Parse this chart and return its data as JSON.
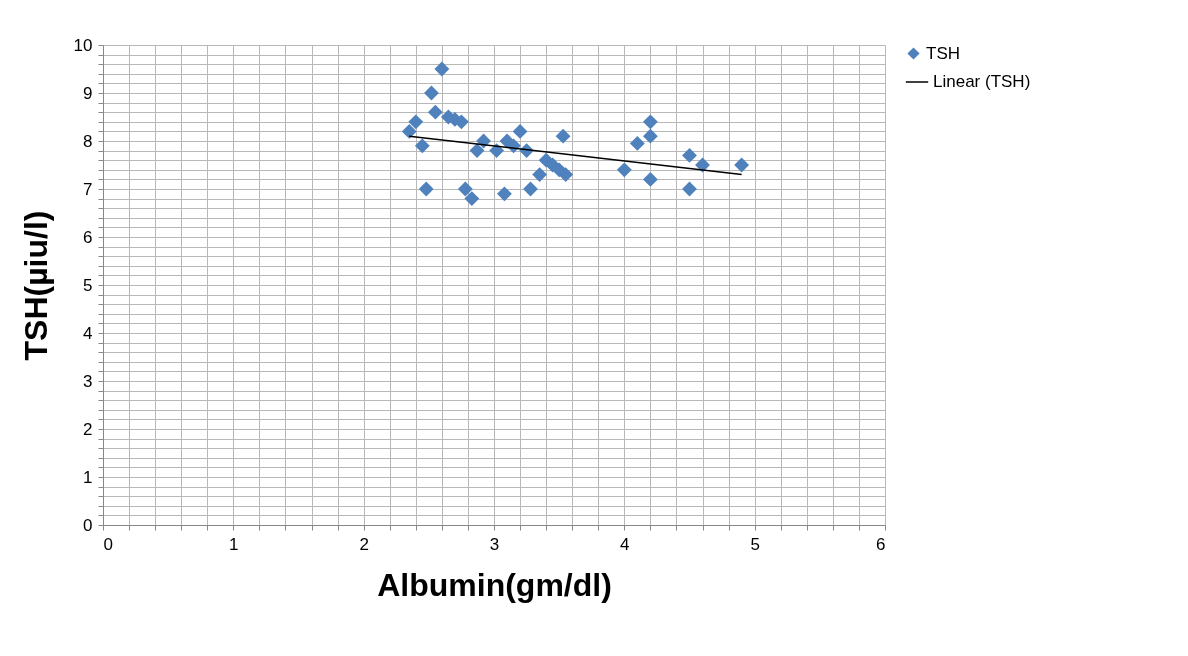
{
  "chart_data": {
    "type": "scatter",
    "xlabel": "Albumin(gm/dl)",
    "ylabel": "TSH(µiu/l)",
    "xlim": [
      0,
      6
    ],
    "ylim": [
      0,
      10
    ],
    "xticks": [
      0,
      {
        "value": 0.2,
        "label": null
      },
      {
        "value": 0.4,
        "label": null
      },
      {
        "value": 0.6,
        "label": null
      },
      {
        "value": 0.8,
        "label": null
      },
      1,
      {
        "value": 1.2,
        "label": null
      },
      {
        "value": 1.4,
        "label": null
      },
      {
        "value": 1.6,
        "label": null
      },
      {
        "value": 1.8,
        "label": null
      },
      2,
      {
        "value": 2.2,
        "label": null
      },
      {
        "value": 2.4,
        "label": null
      },
      {
        "value": 2.6,
        "label": null
      },
      {
        "value": 2.8,
        "label": null
      },
      3,
      {
        "value": 3.2,
        "label": null
      },
      {
        "value": 3.4,
        "label": null
      },
      {
        "value": 3.6,
        "label": null
      },
      {
        "value": 3.8,
        "label": null
      },
      4,
      {
        "value": 4.2,
        "label": null
      },
      {
        "value": 4.4,
        "label": null
      },
      {
        "value": 4.6,
        "label": null
      },
      {
        "value": 4.8,
        "label": null
      },
      5,
      {
        "value": 5.2,
        "label": null
      },
      {
        "value": 5.4,
        "label": null
      },
      {
        "value": 5.6,
        "label": null
      },
      {
        "value": 5.8,
        "label": null
      },
      6
    ],
    "yticks": [
      0,
      {
        "value": 0.2,
        "label": null
      },
      {
        "value": 0.4,
        "label": null
      },
      {
        "value": 0.6,
        "label": null
      },
      {
        "value": 0.8,
        "label": null
      },
      1,
      {
        "value": 1.2,
        "label": null
      },
      {
        "value": 1.4,
        "label": null
      },
      {
        "value": 1.6,
        "label": null
      },
      {
        "value": 1.8,
        "label": null
      },
      2,
      {
        "value": 2.2,
        "label": null
      },
      {
        "value": 2.4,
        "label": null
      },
      {
        "value": 2.6,
        "label": null
      },
      {
        "value": 2.8,
        "label": null
      },
      3,
      {
        "value": 3.2,
        "label": null
      },
      {
        "value": 3.4,
        "label": null
      },
      {
        "value": 3.6,
        "label": null
      },
      {
        "value": 3.8,
        "label": null
      },
      4,
      {
        "value": 4.2,
        "label": null
      },
      {
        "value": 4.4,
        "label": null
      },
      {
        "value": 4.6,
        "label": null
      },
      {
        "value": 4.8,
        "label": null
      },
      5,
      {
        "value": 5.2,
        "label": null
      },
      {
        "value": 5.4,
        "label": null
      },
      {
        "value": 5.6,
        "label": null
      },
      {
        "value": 5.8,
        "label": null
      },
      6,
      {
        "value": 6.2,
        "label": null
      },
      {
        "value": 6.4,
        "label": null
      },
      {
        "value": 6.6,
        "label": null
      },
      {
        "value": 6.8,
        "label": null
      },
      7,
      {
        "value": 7.2,
        "label": null
      },
      {
        "value": 7.4,
        "label": null
      },
      {
        "value": 7.6,
        "label": null
      },
      {
        "value": 7.8,
        "label": null
      },
      8,
      {
        "value": 8.2,
        "label": null
      },
      {
        "value": 8.4,
        "label": null
      },
      {
        "value": 8.6,
        "label": null
      },
      {
        "value": 8.8,
        "label": null
      },
      9,
      {
        "value": 9.2,
        "label": null
      },
      {
        "value": 9.4,
        "label": null
      },
      {
        "value": 9.6,
        "label": null
      },
      {
        "value": 9.8,
        "label": null
      },
      10
    ],
    "grid": true,
    "legend": "right",
    "marker": "diamond",
    "series": [
      {
        "name": "TSH",
        "color": "#4f81bd",
        "x": [
          2.35,
          2.4,
          2.45,
          2.48,
          2.52,
          2.55,
          2.6,
          2.65,
          2.7,
          2.75,
          2.78,
          2.83,
          2.87,
          2.92,
          3.02,
          3.08,
          3.1,
          3.15,
          3.2,
          3.25,
          3.28,
          3.35,
          3.4,
          3.45,
          3.5,
          3.55,
          3.53,
          4.0,
          4.1,
          4.2,
          4.2,
          4.2,
          4.5,
          4.5,
          4.6,
          4.9
        ],
        "values": [
          8.2,
          8.4,
          7.9,
          7.0,
          9.0,
          8.6,
          9.5,
          8.5,
          8.45,
          8.4,
          7.0,
          6.8,
          7.8,
          8.0,
          7.8,
          6.9,
          8.0,
          7.9,
          8.2,
          7.8,
          7.0,
          7.3,
          7.6,
          7.5,
          7.4,
          7.3,
          8.1,
          7.4,
          7.95,
          8.4,
          8.1,
          7.2,
          7.7,
          7.0,
          7.5,
          7.5
        ]
      },
      {
        "name": "Linear (TSH)",
        "type": "line",
        "marker": "none",
        "color": "#000000",
        "x": [
          2.35,
          4.9
        ],
        "values": [
          8.1,
          7.3
        ]
      }
    ]
  }
}
